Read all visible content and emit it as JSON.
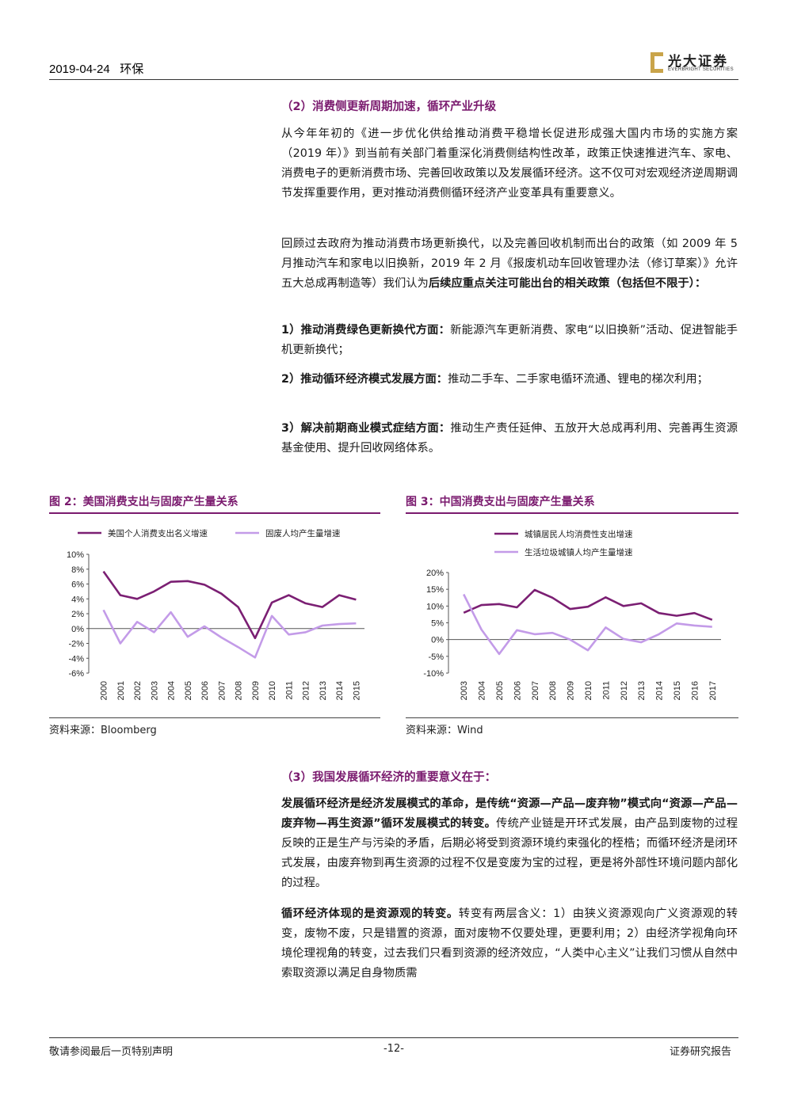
{
  "header": {
    "date": "2019-04-24",
    "category": "环保",
    "logo_cn": "光大证券",
    "logo_en": "EVERBRIGHT SECURITIES"
  },
  "section2": {
    "heading": "（2）消费侧更新周期加速，循环产业升级",
    "p1": "从今年年初的《进一步优化供给推动消费平稳增长促进形成强大国内市场的实施方案（2019 年）》到当前有关部门着重深化消费侧结构性改革，政策正快速推进汽车、家电、消费电子的更新消费市场、完善回收政策以及发展循环经济。这不仅可对宏观经济逆周期调节发挥重要作用，更对推动消费侧循环经济产业变革具有重要意义。",
    "p2_plain": "回顾过去政府为推动消费市场更新换代，以及完善回收机制而出台的政策（如 2009 年 5 月推动汽车和家电以旧换新，2019 年 2 月《报废机动车回收管理办法（修订草案）》允许五大总成再制造等）我们认为",
    "p2_bold": "后续应重点关注可能出台的相关政策（包括但不限于）：",
    "items": [
      {
        "bold": "1）推动消费绿色更新换代方面：",
        "text": "新能源汽车更新消费、家电“以旧换新”活动、促进智能手机更新换代；"
      },
      {
        "bold": "2）推动循环经济模式发展方面：",
        "text": "推动二手车、二手家电循环流通、锂电的梯次利用；"
      },
      {
        "bold": "3）解决前期商业模式症结方面：",
        "text": "推动生产责任延伸、五放开大总成再利用、完善再生资源基金使用、提升回收网络体系。"
      }
    ]
  },
  "fig2": {
    "title": "图 2：美国消费支出与固废产生量关系",
    "source": "资料来源：Bloomberg"
  },
  "fig3": {
    "title": "图 3：中国消费支出与固废产生量关系",
    "source": "资料来源：Wind"
  },
  "chart_data": [
    {
      "type": "line",
      "x": [
        "2000",
        "2001",
        "2002",
        "2003",
        "2004",
        "2005",
        "2006",
        "2007",
        "2008",
        "2009",
        "2010",
        "2011",
        "2012",
        "2013",
        "2014",
        "2015"
      ],
      "ylim": [
        -6,
        10
      ],
      "yticks": [
        "10%",
        "8%",
        "6%",
        "4%",
        "2%",
        "0%",
        "-2%",
        "-4%",
        "-6%"
      ],
      "series": [
        {
          "name": "美国个人消费支出名义增速",
          "color": "#7b1f73",
          "values": [
            7.7,
            4.5,
            4.0,
            5.0,
            6.3,
            6.4,
            5.9,
            4.7,
            2.9,
            -1.3,
            3.5,
            4.5,
            3.4,
            2.9,
            4.5,
            3.9
          ]
        },
        {
          "name": "固废人均产生量增速",
          "color": "#c39be8",
          "values": [
            2.5,
            -2.0,
            0.9,
            -0.5,
            2.2,
            -1.1,
            0.3,
            -1.2,
            -2.5,
            -3.9,
            1.7,
            -0.8,
            -0.5,
            0.4,
            0.6,
            0.7
          ]
        }
      ]
    },
    {
      "type": "line",
      "x": [
        "2003",
        "2004",
        "2005",
        "2006",
        "2007",
        "2008",
        "2009",
        "2010",
        "2011",
        "2012",
        "2013",
        "2014",
        "2015",
        "2016",
        "2017"
      ],
      "ylim": [
        -10,
        20
      ],
      "yticks": [
        "20%",
        "15%",
        "10%",
        "5%",
        "0%",
        "-5%",
        "-10%"
      ],
      "series": [
        {
          "name": "城镇居民人均消费性支出增速",
          "color": "#7b1f73",
          "values": [
            8.0,
            10.3,
            10.6,
            9.6,
            14.8,
            12.5,
            9.1,
            9.8,
            12.6,
            10.0,
            10.8,
            7.9,
            7.1,
            7.9,
            5.9
          ]
        },
        {
          "name": "生活垃圾城镇人均产生量增速",
          "color": "#c39be8",
          "values": [
            13.5,
            3.0,
            -4.3,
            2.8,
            1.6,
            2.0,
            0.0,
            -3.2,
            3.6,
            0.2,
            -0.8,
            1.6,
            4.8,
            4.2,
            3.8
          ]
        }
      ]
    }
  ],
  "section3": {
    "heading": "（3）我国发展循环经济的重要意义在于：",
    "p1_bold": "发展循环经济是经济发展模式的革命，是传统“资源—产品—废弃物”模式向“资源—产品—废弃物—再生资源”循环发展模式的转变。",
    "p1_text": "传统产业链是开环式发展，由产品到废物的过程反映的正是生产与污染的矛盾，后期必将受到资源环境约束强化的桎梏；而循环经济是闭环式发展，由废弃物到再生资源的过程不仅是变废为宝的过程，更是将外部性环境问题内部化的过程。",
    "p2_bold": "循环经济体现的是资源观的转变。",
    "p2_text": "转变有两层含义：1）由狭义资源观向广义资源观的转变，废物不废，只是错置的资源，面对废物不仅要处理，更要利用；2）由经济学视角向环境伦理视角的转变，过去我们只看到资源的经济效应，“人类中心主义”让我们习惯从自然中索取资源以满足自身物质需"
  },
  "footer": {
    "left": "敬请参阅最后一页特别声明",
    "center": "-12-",
    "right": "证券研究报告"
  }
}
